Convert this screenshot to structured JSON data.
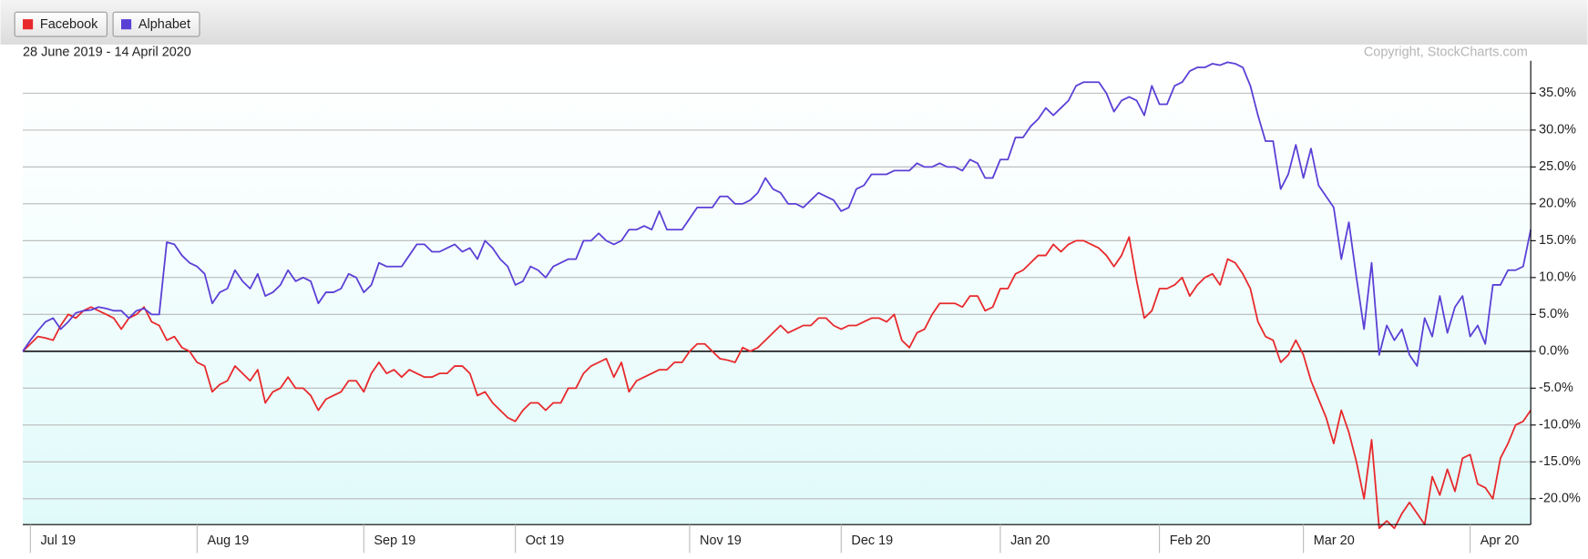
{
  "chart_data": {
    "type": "line",
    "subtitle": "28 June 2019 - 14 April 2020",
    "credit": "Copyright, StockCharts.com",
    "categories": [
      null,
      "Jul 19",
      null,
      null,
      null,
      null,
      null,
      null,
      null,
      null,
      null,
      null,
      null,
      null,
      null,
      null,
      null,
      null,
      null,
      null,
      null,
      null,
      null,
      "Aug 19",
      null,
      null,
      null,
      null,
      null,
      null,
      null,
      null,
      null,
      null,
      null,
      null,
      null,
      null,
      null,
      null,
      null,
      null,
      null,
      null,
      null,
      "Sep 19",
      null,
      null,
      null,
      null,
      null,
      null,
      null,
      null,
      null,
      null,
      null,
      null,
      null,
      null,
      null,
      null,
      null,
      null,
      null,
      "Oct 19",
      null,
      null,
      null,
      null,
      null,
      null,
      null,
      null,
      null,
      null,
      null,
      null,
      null,
      null,
      null,
      null,
      null,
      null,
      null,
      null,
      null,
      null,
      "Nov 19",
      null,
      null,
      null,
      null,
      null,
      null,
      null,
      null,
      null,
      null,
      null,
      null,
      null,
      null,
      null,
      null,
      null,
      null,
      null,
      "Dec 19",
      null,
      null,
      null,
      null,
      null,
      null,
      null,
      null,
      null,
      null,
      null,
      null,
      null,
      null,
      null,
      null,
      null,
      null,
      null,
      null,
      "Jan 20",
      null,
      null,
      null,
      null,
      null,
      null,
      null,
      null,
      null,
      null,
      null,
      null,
      null,
      null,
      null,
      null,
      null,
      null,
      null,
      null,
      "Feb 20",
      null,
      null,
      null,
      null,
      null,
      null,
      null,
      null,
      null,
      null,
      null,
      null,
      null,
      null,
      null,
      null,
      null,
      null,
      "Mar 20",
      null,
      null,
      null,
      null,
      null,
      null,
      null,
      null,
      null,
      null,
      null,
      null,
      null,
      null,
      null,
      null,
      null,
      null,
      null,
      null,
      null,
      "Apr 20",
      null,
      null,
      null,
      null,
      null,
      null,
      null,
      null
    ],
    "series": [
      {
        "name": "Facebook",
        "color": "#e8282b",
        "values": [
          0,
          1,
          2,
          1.8,
          1.5,
          3.5,
          5,
          4.5,
          5.5,
          6,
          5.5,
          5,
          4.5,
          3,
          4.5,
          5,
          6,
          4,
          3.5,
          1.5,
          2,
          0.5,
          0,
          -1.5,
          -2,
          -5.5,
          -4.5,
          -4,
          -2,
          -3,
          -4,
          -2.5,
          -7,
          -5.5,
          -5,
          -3.5,
          -5,
          -5,
          -6,
          -8,
          -6.5,
          -6,
          -5.5,
          -4,
          -4,
          -5.5,
          -3,
          -1.5,
          -3,
          -2.5,
          -3.5,
          -2.5,
          -3,
          -3.5,
          -3.5,
          -3,
          -3,
          -2,
          -2,
          -3,
          -6,
          -5.5,
          -7,
          -8,
          -9,
          -9.5,
          -8,
          -7,
          -7,
          -8,
          -7,
          -7,
          -5,
          -5,
          -3,
          -2,
          -1.5,
          -1,
          -3.5,
          -1.5,
          -5.5,
          -4,
          -3.5,
          -3,
          -2.5,
          -2.5,
          -1.5,
          -1.5,
          0,
          1,
          1,
          0,
          -1,
          -1.2,
          -1.5,
          0.5,
          0,
          0.5,
          1.5,
          2.5,
          3.5,
          2.5,
          3,
          3.5,
          3.5,
          4.5,
          4.5,
          3.5,
          3,
          3.5,
          3.5,
          4,
          4.5,
          4.5,
          4,
          5,
          1.5,
          0.5,
          2.5,
          3,
          5,
          6.5,
          6.5,
          6.5,
          6,
          7.5,
          7.5,
          5.5,
          6,
          8.5,
          8.5,
          10.5,
          11,
          12,
          13,
          13,
          14.5,
          13.5,
          14.5,
          15,
          15,
          14.5,
          14,
          13,
          11.5,
          13,
          15.5,
          9.5,
          4.5,
          5.5,
          8.5,
          8.5,
          9,
          10,
          7.5,
          9,
          10,
          10.5,
          9,
          12.5,
          12,
          10.5,
          8.5,
          4,
          2,
          1.5,
          -1.5,
          -0.5,
          1.5,
          -0.5,
          -4,
          -6.5,
          -9,
          -12.5,
          -8,
          -11,
          -15,
          -20,
          -12,
          -24,
          -23,
          -24,
          -22,
          -20.5,
          -22,
          -23.5,
          -17,
          -19.5,
          -16,
          -19,
          -14.5,
          -14,
          -18,
          -18.5,
          -20,
          -14.5,
          -12.5,
          -10,
          -9.5,
          -8
        ]
      },
      {
        "name": "Alphabet",
        "color": "#5a3fd6",
        "values": [
          0,
          1.5,
          2.8,
          4,
          4.5,
          3,
          4,
          5.2,
          5.5,
          5.6,
          6,
          5.8,
          5.5,
          5.5,
          4.5,
          5.5,
          5.8,
          5,
          5,
          14.8,
          14.5,
          13,
          12,
          11.5,
          10.5,
          6.5,
          8,
          8.5,
          11,
          9.5,
          8.5,
          10.5,
          7.5,
          8,
          9,
          11,
          9.5,
          10,
          9.5,
          6.5,
          8,
          8,
          8.5,
          10.5,
          10,
          8,
          9,
          12,
          11.5,
          11.5,
          11.5,
          13,
          14.5,
          14.5,
          13.5,
          13.5,
          14,
          14.5,
          13.5,
          14,
          12.5,
          15,
          14,
          12.5,
          11.5,
          9,
          9.5,
          11.5,
          11,
          10,
          11.5,
          12,
          12.5,
          12.5,
          15,
          15,
          16,
          15,
          14.5,
          15,
          16.5,
          16.5,
          17,
          16.5,
          19,
          16.5,
          16.5,
          16.5,
          18,
          19.5,
          19.5,
          19.5,
          21,
          21,
          20,
          20,
          20.5,
          21.5,
          23.5,
          22,
          21.5,
          20,
          20,
          19.5,
          20.5,
          21.5,
          21,
          20.5,
          19,
          19.5,
          22,
          22.5,
          24,
          24,
          24,
          24.5,
          24.5,
          24.5,
          25.5,
          25,
          25,
          25.5,
          25,
          25,
          24.5,
          26,
          25.5,
          23.5,
          23.5,
          26,
          26,
          29,
          29,
          30.5,
          31.5,
          33,
          32,
          33,
          34,
          36,
          36.5,
          36.5,
          36.5,
          35,
          32.5,
          34,
          34.5,
          34,
          32,
          36,
          33.5,
          33.5,
          36,
          36.5,
          38,
          38.5,
          38.5,
          39,
          38.8,
          39.2,
          39,
          38.5,
          36,
          32,
          28.5,
          28.5,
          22,
          24,
          28,
          23.5,
          27.5,
          22.5,
          21,
          19.5,
          12.5,
          17.5,
          10,
          3,
          12,
          -0.5,
          3.5,
          1.5,
          3,
          -0.5,
          -2,
          4.5,
          2,
          7.5,
          2.5,
          6,
          7.5,
          2,
          3.5,
          1,
          9,
          9,
          11,
          11,
          11.5,
          16.5
        ]
      }
    ],
    "ylim": [
      -23.5,
      39.4
    ],
    "yticks": [
      {
        "value": -20,
        "label": "-20.0%"
      },
      {
        "value": -15,
        "label": "-15.0%"
      },
      {
        "value": -10,
        "label": "-10.0%"
      },
      {
        "value": -5,
        "label": "-5.0%"
      },
      {
        "value": 0,
        "label": "0.0%"
      },
      {
        "value": 5,
        "label": "5.0%"
      },
      {
        "value": 10,
        "label": "10.0%"
      },
      {
        "value": 15,
        "label": "15.0%"
      },
      {
        "value": 20,
        "label": "20.0%"
      },
      {
        "value": 25,
        "label": "25.0%"
      },
      {
        "value": 30,
        "label": "30.0%"
      },
      {
        "value": 35,
        "label": "35.0%"
      }
    ],
    "grid": true
  }
}
